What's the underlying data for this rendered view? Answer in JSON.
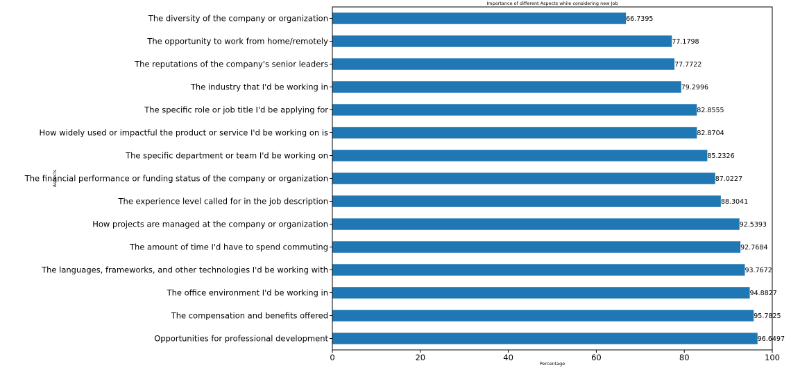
{
  "chart_data": {
    "type": "bar",
    "orientation": "horizontal",
    "title": "Importance of different Aspects while considering new Job",
    "xlabel": "Percentage",
    "ylabel": "Aspects",
    "xlim": [
      0,
      100
    ],
    "xticks": [
      0,
      20,
      40,
      60,
      80,
      100
    ],
    "grid": false,
    "bar_color": "#1f77b4",
    "categories": [
      "The diversity of the company or organization",
      "The opportunity to work from home/remotely",
      "The reputations of the company's senior leaders",
      "The industry that I'd be working in",
      "The specific role or job title I'd be applying for",
      "How widely used or impactful the product or service I'd be working on is",
      "The specific department or team I'd be working on",
      "The financial performance or funding status of the company or organization",
      "The experience level called for in the job description",
      "How projects are managed at the company or organization",
      "The amount of time I'd have to spend commuting",
      "The languages, frameworks, and other technologies I'd be working with",
      "The office environment I'd be working in",
      "The compensation and benefits offered",
      "Opportunities for professional development"
    ],
    "values": [
      66.7395,
      77.1798,
      77.7722,
      79.2996,
      82.8555,
      82.8704,
      85.2326,
      87.0227,
      88.3041,
      92.5393,
      92.7684,
      93.7672,
      94.8827,
      95.7825,
      96.6497
    ],
    "value_labels": [
      "66.7395",
      "77.1798",
      "77.7722",
      "79.2996",
      "82.8555",
      "82.8704",
      "85.2326",
      "87.0227",
      "88.3041",
      "92.5393",
      "92.7684",
      "93.7672",
      "94.8827",
      "95.7825",
      "96.6497"
    ]
  }
}
